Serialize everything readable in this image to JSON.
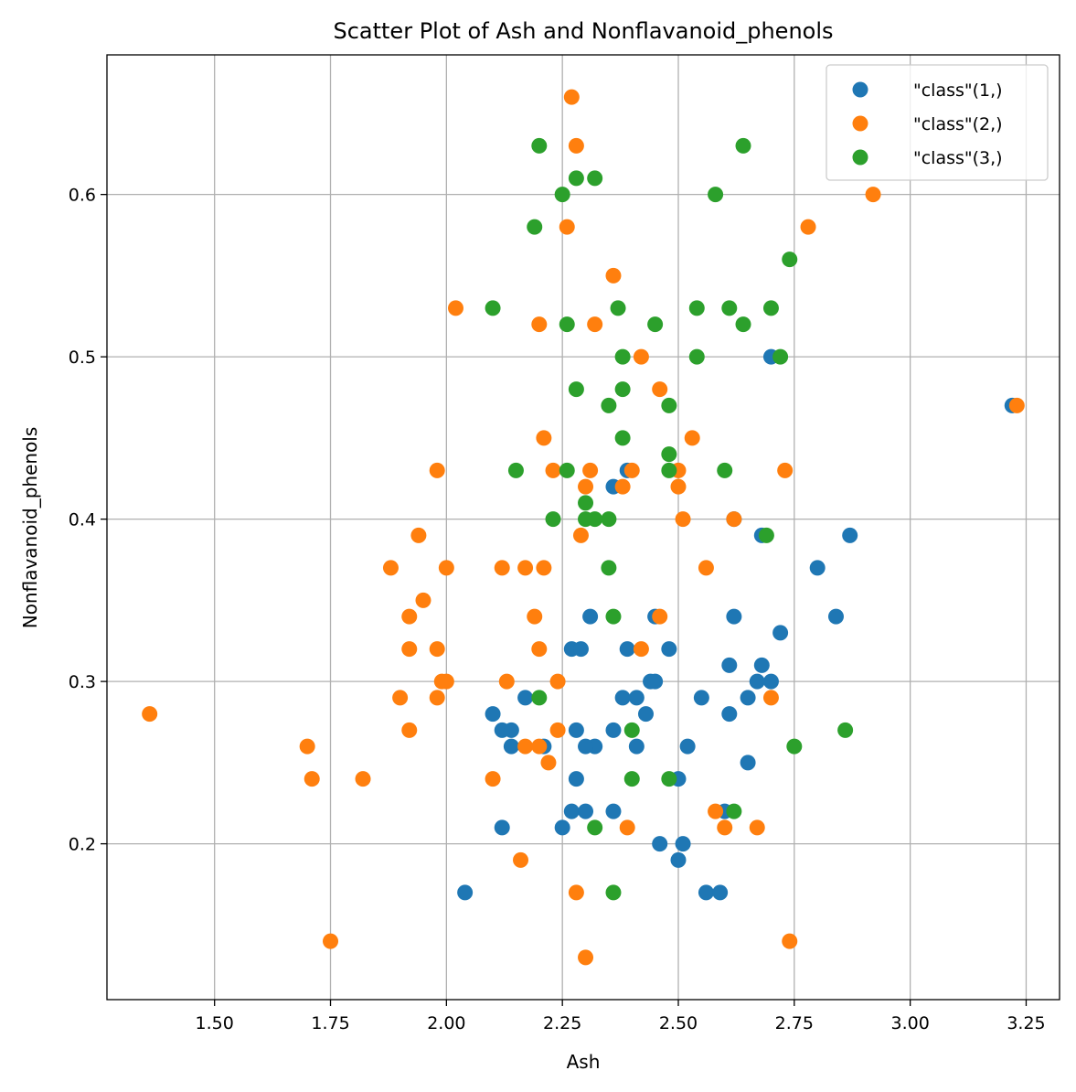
{
  "chart_data": {
    "type": "scatter",
    "title": "Scatter Plot of Ash and Nonflavanoid_phenols",
    "xlabel": "Ash",
    "ylabel": "Nonflavanoid_phenols",
    "xlim": [
      1.268,
      3.322
    ],
    "ylim": [
      0.104,
      0.686
    ],
    "xticks": [
      1.5,
      1.75,
      2.0,
      2.25,
      2.5,
      2.75,
      3.0,
      3.25
    ],
    "xtick_labels": [
      "1.50",
      "1.75",
      "2.00",
      "2.25",
      "2.50",
      "2.75",
      "3.00",
      "3.25"
    ],
    "yticks": [
      0.2,
      0.3,
      0.4,
      0.5,
      0.6
    ],
    "ytick_labels": [
      "0.2",
      "0.3",
      "0.4",
      "0.5",
      "0.6"
    ],
    "grid": true,
    "legend": "top-right",
    "series": [
      {
        "name": "\"class\"(1,)",
        "color": "#1f77b4",
        "points": [
          [
            3.22,
            0.47
          ],
          [
            2.7,
            0.5
          ],
          [
            2.87,
            0.39
          ],
          [
            2.8,
            0.37
          ],
          [
            2.84,
            0.34
          ],
          [
            2.62,
            0.34
          ],
          [
            2.72,
            0.33
          ],
          [
            2.68,
            0.39
          ],
          [
            2.62,
            0.4
          ],
          [
            2.61,
            0.31
          ],
          [
            2.68,
            0.31
          ],
          [
            2.67,
            0.3
          ],
          [
            2.7,
            0.3
          ],
          [
            2.65,
            0.29
          ],
          [
            2.61,
            0.28
          ],
          [
            2.55,
            0.29
          ],
          [
            2.48,
            0.32
          ],
          [
            2.45,
            0.34
          ],
          [
            2.44,
            0.3
          ],
          [
            2.45,
            0.3
          ],
          [
            2.39,
            0.32
          ],
          [
            2.41,
            0.29
          ],
          [
            2.38,
            0.29
          ],
          [
            2.43,
            0.28
          ],
          [
            2.36,
            0.42
          ],
          [
            2.39,
            0.43
          ],
          [
            2.31,
            0.34
          ],
          [
            2.27,
            0.32
          ],
          [
            2.29,
            0.32
          ],
          [
            2.41,
            0.26
          ],
          [
            2.36,
            0.27
          ],
          [
            2.32,
            0.26
          ],
          [
            2.3,
            0.26
          ],
          [
            2.28,
            0.27
          ],
          [
            2.28,
            0.24
          ],
          [
            2.27,
            0.22
          ],
          [
            2.3,
            0.22
          ],
          [
            2.25,
            0.21
          ],
          [
            2.36,
            0.22
          ],
          [
            2.21,
            0.26
          ],
          [
            2.17,
            0.29
          ],
          [
            2.1,
            0.28
          ],
          [
            2.12,
            0.27
          ],
          [
            2.14,
            0.27
          ],
          [
            2.14,
            0.26
          ],
          [
            2.12,
            0.21
          ],
          [
            2.04,
            0.17
          ],
          [
            2.46,
            0.2
          ],
          [
            2.5,
            0.19
          ],
          [
            2.51,
            0.2
          ],
          [
            2.5,
            0.24
          ],
          [
            2.52,
            0.26
          ],
          [
            2.65,
            0.25
          ],
          [
            2.6,
            0.22
          ],
          [
            2.56,
            0.17
          ],
          [
            2.59,
            0.17
          ]
        ]
      },
      {
        "name": "\"class\"(2,)",
        "color": "#ff7f0e",
        "points": [
          [
            2.27,
            0.66
          ],
          [
            2.28,
            0.63
          ],
          [
            2.26,
            0.58
          ],
          [
            2.92,
            0.6
          ],
          [
            2.78,
            0.58
          ],
          [
            2.36,
            0.55
          ],
          [
            2.02,
            0.53
          ],
          [
            2.2,
            0.52
          ],
          [
            2.32,
            0.52
          ],
          [
            2.42,
            0.5
          ],
          [
            2.46,
            0.48
          ],
          [
            3.23,
            0.47
          ],
          [
            2.21,
            0.45
          ],
          [
            2.53,
            0.45
          ],
          [
            1.98,
            0.43
          ],
          [
            2.23,
            0.43
          ],
          [
            2.31,
            0.43
          ],
          [
            2.4,
            0.43
          ],
          [
            2.5,
            0.43
          ],
          [
            2.73,
            0.43
          ],
          [
            2.3,
            0.42
          ],
          [
            2.38,
            0.42
          ],
          [
            2.5,
            0.42
          ],
          [
            2.51,
            0.4
          ],
          [
            2.62,
            0.4
          ],
          [
            2.29,
            0.39
          ],
          [
            1.94,
            0.39
          ],
          [
            1.88,
            0.37
          ],
          [
            2.0,
            0.37
          ],
          [
            2.12,
            0.37
          ],
          [
            2.17,
            0.37
          ],
          [
            2.21,
            0.37
          ],
          [
            2.56,
            0.37
          ],
          [
            1.95,
            0.35
          ],
          [
            1.92,
            0.34
          ],
          [
            2.19,
            0.34
          ],
          [
            2.46,
            0.34
          ],
          [
            1.92,
            0.32
          ],
          [
            1.98,
            0.32
          ],
          [
            2.2,
            0.32
          ],
          [
            2.42,
            0.32
          ],
          [
            1.99,
            0.3
          ],
          [
            2.0,
            0.3
          ],
          [
            2.13,
            0.3
          ],
          [
            2.24,
            0.3
          ],
          [
            1.9,
            0.29
          ],
          [
            1.98,
            0.29
          ],
          [
            2.7,
            0.29
          ],
          [
            1.36,
            0.28
          ],
          [
            1.92,
            0.27
          ],
          [
            2.24,
            0.27
          ],
          [
            1.7,
            0.26
          ],
          [
            2.17,
            0.26
          ],
          [
            2.2,
            0.26
          ],
          [
            2.22,
            0.25
          ],
          [
            1.71,
            0.24
          ],
          [
            1.82,
            0.24
          ],
          [
            2.1,
            0.24
          ],
          [
            2.58,
            0.22
          ],
          [
            2.39,
            0.21
          ],
          [
            2.6,
            0.21
          ],
          [
            2.67,
            0.21
          ],
          [
            2.16,
            0.19
          ],
          [
            2.28,
            0.17
          ],
          [
            1.75,
            0.14
          ],
          [
            2.74,
            0.14
          ],
          [
            2.3,
            0.13
          ]
        ]
      },
      {
        "name": "\"class\"(3,)",
        "color": "#2ca02c",
        "points": [
          [
            2.2,
            0.63
          ],
          [
            2.64,
            0.63
          ],
          [
            2.28,
            0.61
          ],
          [
            2.32,
            0.61
          ],
          [
            2.25,
            0.6
          ],
          [
            2.58,
            0.6
          ],
          [
            2.19,
            0.58
          ],
          [
            2.74,
            0.56
          ],
          [
            2.1,
            0.53
          ],
          [
            2.37,
            0.53
          ],
          [
            2.54,
            0.53
          ],
          [
            2.61,
            0.53
          ],
          [
            2.7,
            0.53
          ],
          [
            2.26,
            0.52
          ],
          [
            2.45,
            0.52
          ],
          [
            2.64,
            0.52
          ],
          [
            2.38,
            0.5
          ],
          [
            2.54,
            0.5
          ],
          [
            2.72,
            0.5
          ],
          [
            2.28,
            0.48
          ],
          [
            2.38,
            0.48
          ],
          [
            2.35,
            0.47
          ],
          [
            2.48,
            0.47
          ],
          [
            2.38,
            0.45
          ],
          [
            2.48,
            0.44
          ],
          [
            2.15,
            0.43
          ],
          [
            2.26,
            0.43
          ],
          [
            2.48,
            0.43
          ],
          [
            2.6,
            0.43
          ],
          [
            2.3,
            0.41
          ],
          [
            2.23,
            0.4
          ],
          [
            2.3,
            0.4
          ],
          [
            2.32,
            0.4
          ],
          [
            2.35,
            0.4
          ],
          [
            2.69,
            0.39
          ],
          [
            2.35,
            0.37
          ],
          [
            2.36,
            0.34
          ],
          [
            2.2,
            0.29
          ],
          [
            2.4,
            0.27
          ],
          [
            2.86,
            0.27
          ],
          [
            2.75,
            0.26
          ],
          [
            2.4,
            0.24
          ],
          [
            2.48,
            0.24
          ],
          [
            2.62,
            0.22
          ],
          [
            2.32,
            0.21
          ],
          [
            2.36,
            0.17
          ]
        ]
      }
    ]
  }
}
